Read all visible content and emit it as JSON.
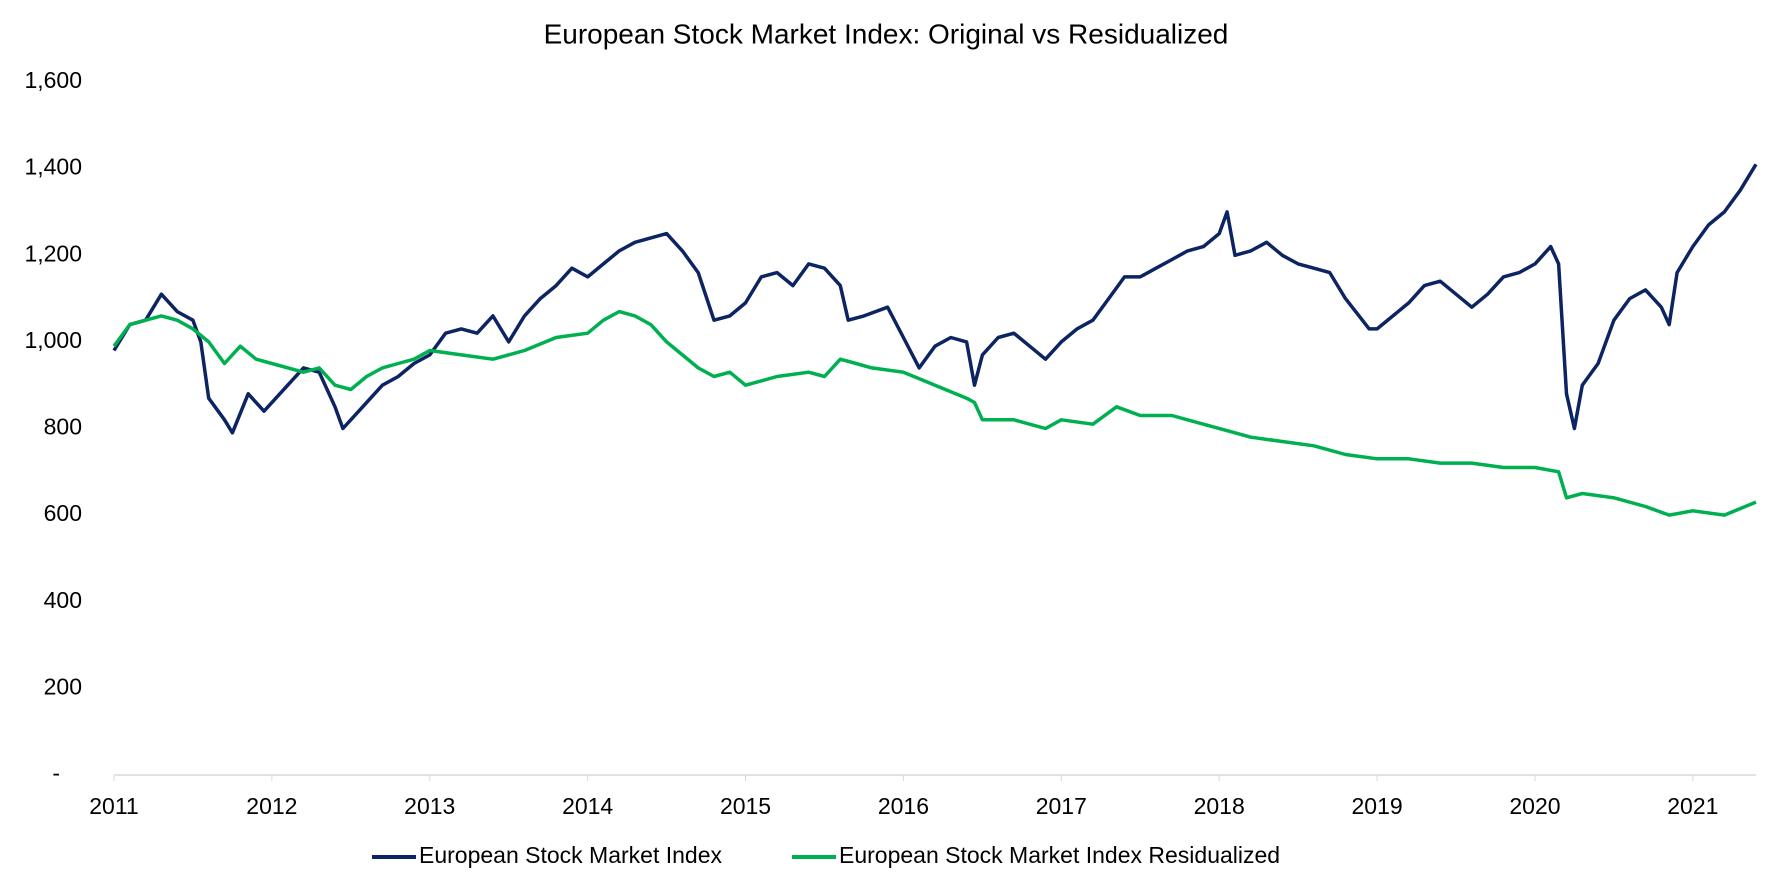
{
  "chart_data": {
    "type": "line",
    "title": "European Stock Market Index: Original vs Residualized",
    "xlim": [
      2011,
      2021.4
    ],
    "xticks": [
      2011,
      2012,
      2013,
      2014,
      2015,
      2016,
      2017,
      2018,
      2019,
      2020,
      2021
    ],
    "ylim": [
      0,
      1600
    ],
    "yticks": [
      {
        "value": 0,
        "label": "-"
      },
      200,
      400,
      600,
      800,
      {
        "value": 1000,
        "label": "1,000"
      },
      {
        "value": 1200,
        "label": "1,200"
      },
      {
        "value": 1400,
        "label": "1,400"
      },
      {
        "value": 1600,
        "label": "1,600"
      }
    ],
    "grid": false,
    "legend": "bottom",
    "series": [
      {
        "name": "European Stock Market Index",
        "color": "#0d2463",
        "x": [
          2011.0,
          2011.1,
          2011.2,
          2011.3,
          2011.4,
          2011.5,
          2011.55,
          2011.6,
          2011.7,
          2011.75,
          2011.85,
          2011.95,
          2012.1,
          2012.2,
          2012.3,
          2012.4,
          2012.45,
          2012.55,
          2012.7,
          2012.8,
          2012.9,
          2013.0,
          2013.1,
          2013.2,
          2013.3,
          2013.4,
          2013.5,
          2013.6,
          2013.7,
          2013.8,
          2013.9,
          2014.0,
          2014.1,
          2014.2,
          2014.3,
          2014.4,
          2014.5,
          2014.6,
          2014.7,
          2014.8,
          2014.9,
          2015.0,
          2015.1,
          2015.2,
          2015.3,
          2015.4,
          2015.5,
          2015.6,
          2015.65,
          2015.75,
          2015.9,
          2016.0,
          2016.1,
          2016.2,
          2016.3,
          2016.4,
          2016.45,
          2016.5,
          2016.6,
          2016.7,
          2016.8,
          2016.9,
          2017.0,
          2017.1,
          2017.2,
          2017.3,
          2017.4,
          2017.5,
          2017.6,
          2017.7,
          2017.8,
          2017.9,
          2018.0,
          2018.05,
          2018.1,
          2018.2,
          2018.3,
          2018.4,
          2018.5,
          2018.6,
          2018.7,
          2018.8,
          2018.95,
          2019.0,
          2019.1,
          2019.2,
          2019.3,
          2019.4,
          2019.5,
          2019.6,
          2019.7,
          2019.8,
          2019.9,
          2020.0,
          2020.1,
          2020.15,
          2020.2,
          2020.25,
          2020.3,
          2020.4,
          2020.5,
          2020.6,
          2020.7,
          2020.8,
          2020.85,
          2020.9,
          2021.0,
          2021.1,
          2021.2,
          2021.3,
          2021.4
        ],
        "values": [
          980,
          1040,
          1050,
          1110,
          1070,
          1050,
          1000,
          870,
          820,
          790,
          880,
          840,
          900,
          940,
          930,
          850,
          800,
          840,
          900,
          920,
          950,
          970,
          1020,
          1030,
          1020,
          1060,
          1000,
          1060,
          1100,
          1130,
          1170,
          1150,
          1180,
          1210,
          1230,
          1240,
          1250,
          1210,
          1160,
          1050,
          1060,
          1090,
          1150,
          1160,
          1130,
          1180,
          1170,
          1130,
          1050,
          1060,
          1080,
          1010,
          940,
          990,
          1010,
          1000,
          900,
          970,
          1010,
          1020,
          990,
          960,
          1000,
          1030,
          1050,
          1100,
          1150,
          1150,
          1170,
          1190,
          1210,
          1220,
          1250,
          1300,
          1200,
          1210,
          1230,
          1200,
          1180,
          1170,
          1160,
          1100,
          1030,
          1030,
          1060,
          1090,
          1130,
          1140,
          1110,
          1080,
          1110,
          1150,
          1160,
          1180,
          1220,
          1180,
          880,
          800,
          900,
          950,
          1050,
          1100,
          1120,
          1080,
          1040,
          1160,
          1220,
          1270,
          1300,
          1350,
          1410
        ]
      },
      {
        "name": "European Stock Market Index Residualized",
        "color": "#00b050",
        "x": [
          2011.0,
          2011.1,
          2011.2,
          2011.3,
          2011.4,
          2011.5,
          2011.6,
          2011.7,
          2011.8,
          2011.9,
          2012.0,
          2012.2,
          2012.3,
          2012.4,
          2012.5,
          2012.6,
          2012.7,
          2012.8,
          2012.9,
          2013.0,
          2013.2,
          2013.4,
          2013.6,
          2013.8,
          2014.0,
          2014.1,
          2014.2,
          2014.3,
          2014.4,
          2014.5,
          2014.6,
          2014.7,
          2014.8,
          2014.9,
          2015.0,
          2015.2,
          2015.4,
          2015.5,
          2015.6,
          2015.7,
          2015.8,
          2016.0,
          2016.2,
          2016.4,
          2016.45,
          2016.5,
          2016.7,
          2016.9,
          2017.0,
          2017.2,
          2017.35,
          2017.5,
          2017.7,
          2017.9,
          2018.1,
          2018.2,
          2018.4,
          2018.6,
          2018.8,
          2019.0,
          2019.2,
          2019.4,
          2019.6,
          2019.8,
          2020.0,
          2020.15,
          2020.2,
          2020.3,
          2020.5,
          2020.7,
          2020.85,
          2021.0,
          2021.2,
          2021.4
        ],
        "values": [
          990,
          1040,
          1050,
          1060,
          1050,
          1030,
          1000,
          950,
          990,
          960,
          950,
          930,
          940,
          900,
          890,
          920,
          940,
          950,
          960,
          980,
          970,
          960,
          980,
          1010,
          1020,
          1050,
          1070,
          1060,
          1040,
          1000,
          970,
          940,
          920,
          930,
          900,
          920,
          930,
          920,
          960,
          950,
          940,
          930,
          900,
          870,
          860,
          820,
          820,
          800,
          820,
          810,
          850,
          830,
          830,
          810,
          790,
          780,
          770,
          760,
          740,
          730,
          730,
          720,
          720,
          710,
          710,
          700,
          640,
          650,
          640,
          620,
          600,
          610,
          600,
          630
        ]
      }
    ]
  }
}
